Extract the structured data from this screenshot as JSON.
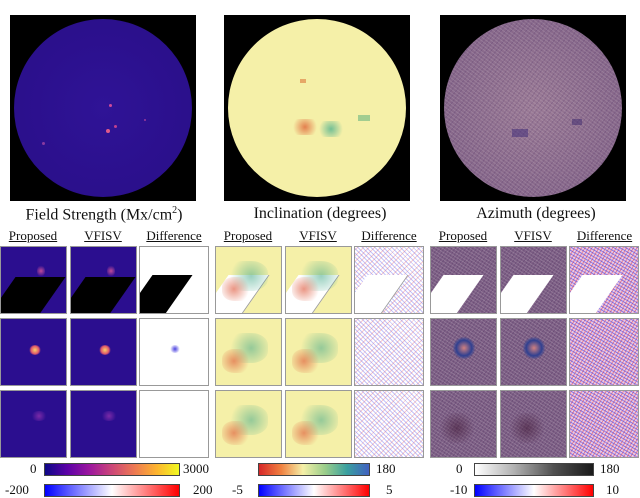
{
  "header_fragment": "",
  "panels": [
    {
      "title_main": "Field Strength (Mx/cm",
      "title_sup": "2",
      "title_end": ")"
    },
    {
      "title_main": "Inclination (degrees)",
      "title_sup": "",
      "title_end": ""
    },
    {
      "title_main": "Azimuth (degrees)",
      "title_sup": "",
      "title_end": ""
    }
  ],
  "column_labels": [
    "Proposed",
    "VFISV",
    "Difference"
  ],
  "colorbars": [
    {
      "main_min": "0",
      "main_max": "3000",
      "diff_min": "-200",
      "diff_max": "200"
    },
    {
      "main_min": "",
      "main_max": "180",
      "diff_min": "-5",
      "diff_max": "5"
    },
    {
      "main_min": "0",
      "main_max": "180",
      "diff_min": "-10",
      "diff_max": "10"
    }
  ],
  "colors": {
    "field_strength_bg": "#2b0e8f",
    "inclination_bg": "#f5f0a8",
    "azimuth_bg": "#8a6a8a",
    "difference_bg": "#ffffff"
  }
}
